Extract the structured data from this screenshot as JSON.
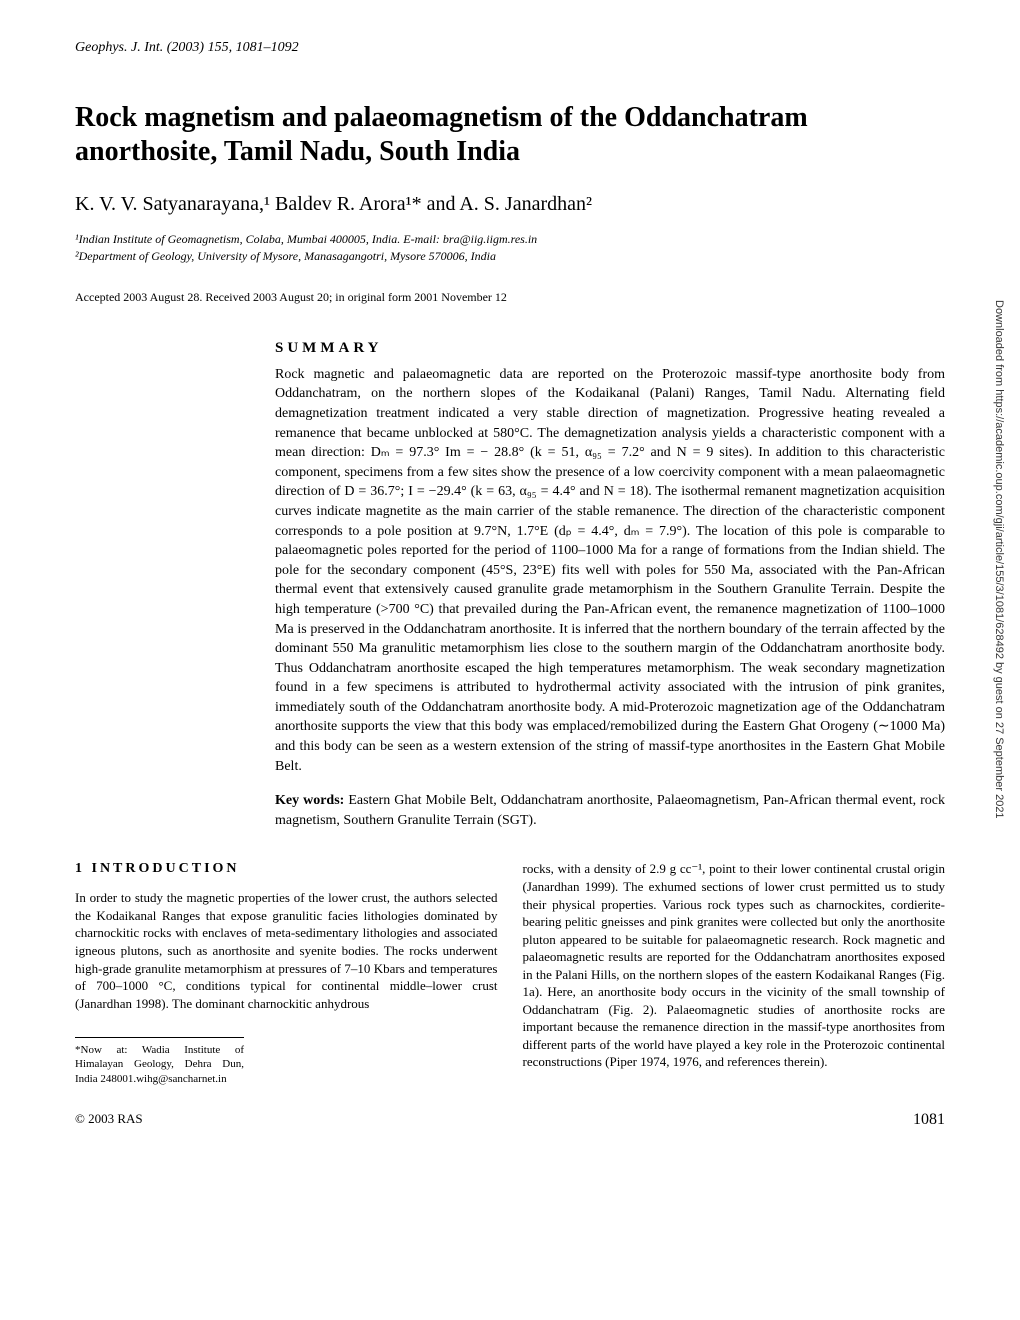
{
  "journal_header": "Geophys. J. Int. (2003) 155, 1081–1092",
  "title": "Rock magnetism and palaeomagnetism of the Oddanchatram anorthosite, Tamil Nadu, South India",
  "authors": "K. V. V. Satyanarayana,¹ Baldev R. Arora¹* and A. S. Janardhan²",
  "affiliations": {
    "aff1": "¹Indian Institute of Geomagnetism, Colaba, Mumbai 400005, India. E-mail: bra@iig.iigm.res.in",
    "aff2": "²Department of Geology, University of Mysore, Manasagangotri, Mysore 570006, India"
  },
  "accepted": "Accepted 2003 August 28. Received 2003 August 20; in original form 2001 November 12",
  "summary": {
    "heading": "SUMMARY",
    "body": "Rock magnetic and palaeomagnetic data are reported on the Proterozoic massif-type anorthosite body from Oddanchatram, on the northern slopes of the Kodaikanal (Palani) Ranges, Tamil Nadu. Alternating field demagnetization treatment indicated a very stable direction of magnetization. Progressive heating revealed a remanence that became unblocked at 580°C. The demagnetization analysis yields a characteristic component with a mean direction: Dₘ = 97.3° Im = − 28.8° (k = 51, α₉₅ = 7.2° and N = 9 sites). In addition to this characteristic component, specimens from a few sites show the presence of a low coercivity component with a mean palaeomagnetic direction of D = 36.7°; I = −29.4° (k = 63, α₉₅ = 4.4° and N = 18). The isothermal remanent magnetization acquisition curves indicate magnetite as the main carrier of the stable remanence. The direction of the characteristic component corresponds to a pole position at 9.7°N, 1.7°E (dₚ = 4.4°, dₘ = 7.9°). The location of this pole is comparable to palaeomagnetic poles reported for the period of 1100–1000 Ma for a range of formations from the Indian shield. The pole for the secondary component (45°S, 23°E) fits well with poles for 550 Ma, associated with the Pan-African thermal event that extensively caused granulite grade metamorphism in the Southern Granulite Terrain. Despite the high temperature (>700 °C) that prevailed during the Pan-African event, the remanence magnetization of 1100–1000 Ma is preserved in the Oddanchatram anorthosite. It is inferred that the northern boundary of the terrain affected by the dominant 550 Ma granulitic metamorphism lies close to the southern margin of the Oddanchatram anorthosite body. Thus Oddanchatram anorthosite escaped the high temperatures metamorphism. The weak secondary magnetization found in a few specimens is attributed to hydrothermal activity associated with the intrusion of pink granites, immediately south of the Oddanchatram anorthosite body. A mid-Proterozoic magnetization age of the Oddanchatram anorthosite supports the view that this body was emplaced/remobilized during the Eastern Ghat Orogeny (∼1000 Ma) and this body can be seen as a western extension of the string of massif-type anorthosites in the Eastern Ghat Mobile Belt."
  },
  "keywords": {
    "label": "Key words:",
    "text": " Eastern Ghat Mobile Belt, Oddanchatram anorthosite, Palaeomagnetism, Pan-African thermal event, rock magnetism, Southern Granulite Terrain (SGT)."
  },
  "intro": {
    "heading": "1 INTRODUCTION",
    "col1": "In order to study the magnetic properties of the lower crust, the authors selected the Kodaikanal Ranges that expose granulitic facies lithologies dominated by charnockitic rocks with enclaves of meta-sedimentary lithologies and associated igneous plutons, such as anorthosite and syenite bodies. The rocks underwent high-grade granulite metamorphism at pressures of 7–10 Kbars and temperatures of 700–1000 °C, conditions typical for continental middle–lower crust (Janardhan 1998). The dominant charnockitic anhydrous",
    "col2": "rocks, with a density of 2.9 g cc⁻¹, point to their lower continental crustal origin (Janardhan 1999). The exhumed sections of lower crust permitted us to study their physical properties. Various rock types such as charnockites, cordierite-bearing pelitic gneisses and pink granites were collected but only the anorthosite pluton appeared to be suitable for palaeomagnetic research. Rock magnetic and palaeomagnetic results are reported for the Oddanchatram anorthosites exposed in the Palani Hills, on the northern slopes of the eastern Kodaikanal Ranges (Fig. 1a). Here, an anorthosite body occurs in the vicinity of the small township of Oddanchatram (Fig. 2). Palaeomagnetic studies of anorthosite rocks are important because the remanence direction in the massif-type anorthosites from different parts of the world have played a key role in the Proterozoic continental reconstructions (Piper 1974, 1976, and references therein)."
  },
  "footnote": "*Now at: Wadia Institute of Himalayan Geology, Dehra Dun, India 248001.wihg@sancharnet.in",
  "footer": {
    "copyright": "© 2003 RAS",
    "page": "1081"
  },
  "sidebar": "Downloaded from https://academic.oup.com/gji/article/155/3/1081/628492 by guest on 27 September 2021"
}
